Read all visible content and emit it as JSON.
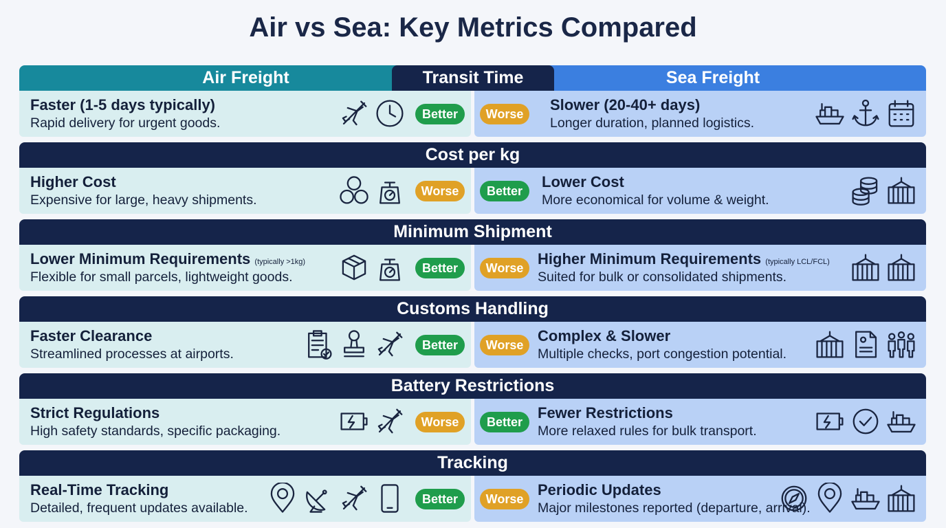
{
  "title": "Air vs Sea: Key Metrics Compared",
  "header": {
    "air": "Air Freight",
    "sea": "Sea Freight"
  },
  "rows": [
    {
      "metric": "Transit Time",
      "air": {
        "title": "Faster (1-5 days typically)",
        "desc": "Rapid delivery for urgent goods.",
        "badge": {
          "label": "Better",
          "color": "#1f9d4c"
        }
      },
      "sea": {
        "title": "Slower (20-40+ days)",
        "desc": "Longer duration, planned logistics.",
        "badge": {
          "label": "Worse",
          "color": "#e0a126"
        }
      }
    },
    {
      "metric": "Cost per kg",
      "air": {
        "title": "Higher Cost",
        "desc": "Expensive for large, heavy shipments.",
        "badge": {
          "label": "Worse",
          "color": "#e0a126"
        }
      },
      "sea": {
        "title": "Lower Cost",
        "desc": "More economical for volume & weight.",
        "badge": {
          "label": "Better",
          "color": "#1f9d4c"
        }
      }
    },
    {
      "metric": "Minimum Shipment",
      "air": {
        "title": "Lower Minimum Requirements",
        "note": "(typically >1kg)",
        "desc": "Flexible for small parcels, lightweight goods.",
        "badge": {
          "label": "Better",
          "color": "#1f9d4c"
        }
      },
      "sea": {
        "title": "Higher Minimum Requirements",
        "note": "(typically LCL/FCL)",
        "desc": "Suited for bulk or consolidated shipments.",
        "badge": {
          "label": "Worse",
          "color": "#e0a126"
        }
      }
    },
    {
      "metric": "Customs Handling",
      "air": {
        "title": "Faster Clearance",
        "desc": "Streamlined processes at airports.",
        "badge": {
          "label": "Better",
          "color": "#1f9d4c"
        }
      },
      "sea": {
        "title": "Complex & Slower",
        "desc": "Multiple checks, port congestion potential.",
        "badge": {
          "label": "Worse",
          "color": "#e0a126"
        }
      }
    },
    {
      "metric": "Battery Restrictions",
      "air": {
        "title": "Strict Regulations",
        "desc": "High safety standards, specific packaging.",
        "badge": {
          "label": "Worse",
          "color": "#e0a126"
        }
      },
      "sea": {
        "title": "Fewer Restrictions",
        "desc": "More relaxed rules for bulk transport.",
        "badge": {
          "label": "Better",
          "color": "#1f9d4c"
        }
      }
    },
    {
      "metric": "Tracking",
      "air": {
        "title": "Real-Time Tracking",
        "desc": "Detailed, frequent updates available.",
        "badge": {
          "label": "Better",
          "color": "#1f9d4c"
        }
      },
      "sea": {
        "title": "Periodic Updates",
        "desc": "Major milestones reported (departure, arrival).",
        "badge": {
          "label": "Worse",
          "color": "#e0a126"
        }
      }
    }
  ]
}
